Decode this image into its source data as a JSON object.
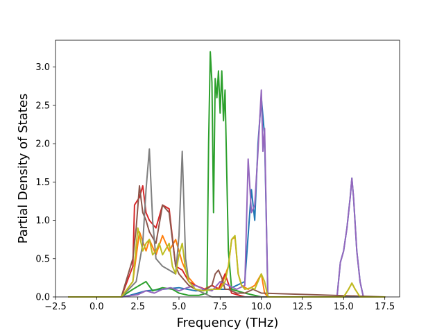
{
  "chart_data": {
    "type": "line",
    "title": "",
    "xlabel": "Frequency (THz)",
    "ylabel": "Partial Density of States",
    "xlim": [
      -2.5,
      18.4
    ],
    "ylim": [
      0,
      3.35
    ],
    "xticks": [
      -2.5,
      0.0,
      2.5,
      5.0,
      7.5,
      10.0,
      12.5,
      15.0,
      17.5
    ],
    "xtick_labels": [
      "−2.5",
      "0.0",
      "2.5",
      "5.0",
      "7.5",
      "10.0",
      "12.5",
      "15.0",
      "17.5"
    ],
    "yticks": [
      0.0,
      0.5,
      1.0,
      1.5,
      2.0,
      2.5,
      3.0
    ],
    "ytick_labels": [
      "0.0",
      "0.5",
      "1.0",
      "1.5",
      "2.0",
      "2.5",
      "3.0"
    ],
    "grid": false,
    "legend": "none",
    "series": [
      {
        "color": "#1f77b4",
        "x": [
          -1.7,
          1.5,
          2.0,
          2.5,
          3.0,
          4.0,
          5.0,
          6.0,
          7.0,
          8.0,
          9.0,
          9.4,
          9.6,
          9.8,
          10.0,
          10.2,
          10.4,
          14.6,
          14.8,
          15.0,
          15.2,
          15.4,
          15.5,
          15.6,
          15.8,
          16.0,
          16.2,
          17.5
        ],
        "y": [
          0.0,
          0.0,
          0.02,
          0.05,
          0.08,
          0.1,
          0.12,
          0.08,
          0.1,
          0.1,
          0.2,
          1.4,
          1.0,
          2.0,
          2.6,
          2.1,
          0.0,
          0.0,
          0.45,
          0.6,
          0.9,
          1.3,
          1.55,
          1.3,
          0.6,
          0.2,
          0.0,
          0.0
        ]
      },
      {
        "color": "#ff7f0e",
        "x": [
          -1.7,
          1.5,
          2.2,
          2.6,
          3.0,
          3.2,
          3.6,
          4.0,
          4.4,
          4.8,
          5.2,
          5.6,
          6.0,
          6.5,
          7.0,
          7.5,
          8.0,
          8.2,
          8.4,
          8.6,
          8.8,
          9.2,
          9.6,
          10.0,
          10.2,
          10.4,
          15.0,
          15.3,
          15.5,
          15.7,
          16.0,
          17.5
        ],
        "y": [
          0.0,
          0.0,
          0.2,
          0.85,
          0.6,
          0.75,
          0.55,
          0.8,
          0.6,
          0.75,
          0.45,
          0.25,
          0.15,
          0.1,
          0.15,
          0.1,
          0.4,
          0.75,
          0.78,
          0.3,
          0.15,
          0.1,
          0.15,
          0.3,
          0.05,
          0.0,
          0.0,
          0.1,
          0.18,
          0.1,
          0.0,
          0.0
        ]
      },
      {
        "color": "#2ca02c",
        "x": [
          -1.7,
          1.5,
          2.2,
          2.6,
          3.0,
          3.4,
          4.0,
          4.6,
          5.0,
          5.6,
          6.2,
          6.7,
          6.8,
          6.9,
          7.0,
          7.1,
          7.2,
          7.3,
          7.4,
          7.5,
          7.6,
          7.7,
          7.8,
          8.0,
          8.2,
          9.0,
          10.0,
          17.5
        ],
        "y": [
          0.0,
          0.0,
          0.1,
          0.15,
          0.2,
          0.08,
          0.12,
          0.1,
          0.05,
          0.02,
          0.02,
          0.05,
          2.0,
          3.2,
          2.8,
          1.1,
          2.85,
          2.6,
          2.95,
          2.4,
          2.95,
          2.3,
          2.7,
          0.6,
          0.1,
          0.05,
          0.0,
          0.0
        ]
      },
      {
        "color": "#d62728",
        "x": [
          -1.7,
          1.5,
          2.2,
          2.3,
          2.6,
          2.8,
          3.0,
          3.2,
          3.6,
          4.0,
          4.4,
          4.8,
          5.2,
          5.6,
          6.0,
          6.6,
          7.0,
          7.4,
          7.8,
          8.2,
          9.0,
          10.0,
          17.5
        ],
        "y": [
          0.0,
          0.0,
          0.4,
          1.2,
          1.3,
          1.45,
          1.1,
          1.0,
          0.9,
          1.2,
          1.15,
          0.4,
          0.35,
          0.2,
          0.15,
          0.1,
          0.15,
          0.1,
          0.3,
          0.05,
          0.0,
          0.0,
          0.0
        ]
      },
      {
        "color": "#9467bd",
        "x": [
          -1.7,
          1.5,
          2.5,
          3.0,
          3.5,
          4.0,
          4.5,
          5.0,
          5.5,
          6.0,
          6.5,
          7.0,
          7.5,
          8.0,
          8.5,
          9.0,
          9.2,
          9.4,
          9.6,
          9.8,
          10.0,
          10.1,
          10.2,
          10.4,
          14.6,
          14.8,
          15.0,
          15.2,
          15.4,
          15.5,
          15.6,
          15.8,
          16.0,
          16.2,
          17.5
        ],
        "y": [
          0.0,
          0.0,
          0.03,
          0.08,
          0.05,
          0.1,
          0.12,
          0.08,
          0.12,
          0.15,
          0.1,
          0.08,
          0.2,
          0.15,
          0.1,
          0.15,
          1.8,
          1.1,
          1.2,
          1.9,
          2.7,
          1.9,
          2.2,
          0.0,
          0.0,
          0.45,
          0.6,
          0.9,
          1.3,
          1.55,
          1.3,
          0.6,
          0.2,
          0.0,
          0.0
        ]
      },
      {
        "color": "#8c564b",
        "x": [
          -1.7,
          1.5,
          2.2,
          2.4,
          2.6,
          2.8,
          3.0,
          3.2,
          3.6,
          4.0,
          4.4,
          4.8,
          5.0,
          5.2,
          5.6,
          6.0,
          6.5,
          7.0,
          7.2,
          7.4,
          7.6,
          7.8,
          8.0,
          8.5,
          9.0,
          9.5,
          10.0,
          17.5
        ],
        "y": [
          0.0,
          0.0,
          0.5,
          0.9,
          1.45,
          1.1,
          1.0,
          0.85,
          0.7,
          1.2,
          1.1,
          0.4,
          0.3,
          0.25,
          0.15,
          0.1,
          0.08,
          0.15,
          0.3,
          0.35,
          0.25,
          0.1,
          0.1,
          0.05,
          0.05,
          0.1,
          0.05,
          0.0
        ]
      },
      {
        "color": "#7f7f7f",
        "x": [
          -1.7,
          1.5,
          2.4,
          2.8,
          3.0,
          3.2,
          3.4,
          3.6,
          4.0,
          4.4,
          4.8,
          5.0,
          5.2,
          5.4,
          5.6,
          6.0,
          6.5,
          7.0,
          17.5
        ],
        "y": [
          0.0,
          0.0,
          0.2,
          0.7,
          1.4,
          1.93,
          1.0,
          0.5,
          0.4,
          0.35,
          0.3,
          0.8,
          1.9,
          0.5,
          0.2,
          0.1,
          0.05,
          0.0,
          0.0
        ]
      },
      {
        "color": "#bcbd22",
        "x": [
          -1.7,
          1.5,
          2.2,
          2.5,
          2.8,
          3.0,
          3.2,
          3.4,
          3.6,
          3.8,
          4.0,
          4.4,
          4.6,
          4.8,
          5.0,
          5.2,
          5.4,
          5.6,
          6.0,
          6.5,
          7.0,
          7.5,
          7.8,
          8.0,
          8.2,
          8.4,
          8.6,
          8.8,
          9.0,
          9.4,
          9.6,
          9.8,
          10.0,
          10.2,
          10.4,
          15.0,
          15.3,
          15.5,
          15.7,
          16.0,
          17.5
        ],
        "y": [
          0.0,
          0.0,
          0.2,
          0.9,
          0.6,
          0.7,
          0.75,
          0.55,
          0.6,
          0.7,
          0.55,
          0.7,
          0.4,
          0.3,
          0.55,
          0.7,
          0.35,
          0.2,
          0.1,
          0.08,
          0.1,
          0.1,
          0.2,
          0.4,
          0.75,
          0.8,
          0.3,
          0.15,
          0.1,
          0.12,
          0.1,
          0.2,
          0.3,
          0.2,
          0.0,
          0.0,
          0.1,
          0.18,
          0.1,
          0.0,
          0.0
        ]
      }
    ]
  }
}
